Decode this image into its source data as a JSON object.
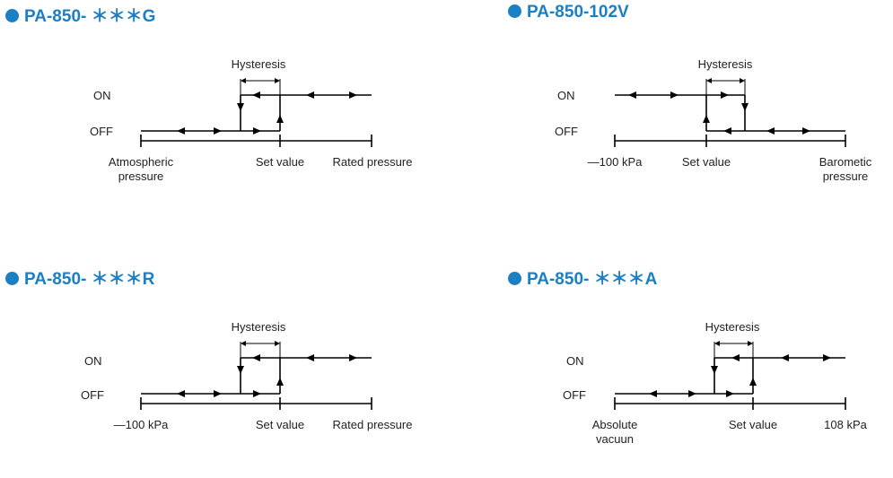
{
  "colors": {
    "accent": "#1b7fc4",
    "line": "#000000"
  },
  "diagrams": [
    {
      "title": "PA-850- ＊＊＊G",
      "hysteresis": "Hysteresis",
      "on": "ON",
      "off": "OFF",
      "axis_left": "Atmospheric\npressure",
      "axis_mid": "Set value",
      "axis_right": "Rated pressure"
    },
    {
      "title": "PA-850-102V",
      "hysteresis": "Hysteresis",
      "on": "ON",
      "off": "OFF",
      "axis_left": "—100 kPa",
      "axis_mid": "Set value",
      "axis_right": "Barometic\npressure"
    },
    {
      "title": "PA-850- ＊＊＊R",
      "hysteresis": "Hysteresis",
      "on": "ON",
      "off": "OFF",
      "axis_left": "—100 kPa",
      "axis_mid": "Set value",
      "axis_right": "Rated pressure"
    },
    {
      "title": "PA-850- ＊＊＊A",
      "hysteresis": "Hysteresis",
      "on": "ON",
      "off": "OFF",
      "axis_left": "Absolute\nvacuun",
      "axis_mid": "Set value",
      "axis_right": "108 kPa"
    }
  ]
}
